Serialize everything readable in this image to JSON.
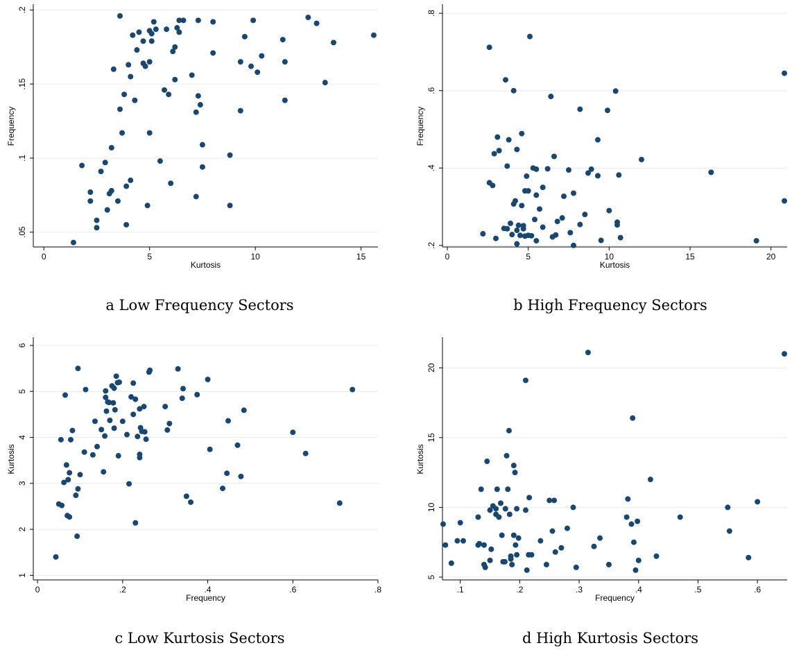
{
  "chart_data": [
    {
      "type": "scatter",
      "caption": "a  Low Frequency Sectors",
      "xlabel": "Kurtosis",
      "ylabel": "Frequency",
      "xlim": [
        -0.5,
        15.8
      ],
      "ylim": [
        0.04,
        0.203
      ],
      "xticks": [
        {
          "v": 0,
          "label": "0"
        },
        {
          "v": 5,
          "label": "5"
        },
        {
          "v": 10,
          "label": "10"
        },
        {
          "v": 15,
          "label": "15"
        }
      ],
      "yticks": [
        {
          "v": 0.05,
          "label": ".05"
        },
        {
          "v": 0.1,
          "label": ".1"
        },
        {
          "v": 0.15,
          "label": ".15"
        },
        {
          "v": 0.2,
          "label": ".2"
        }
      ],
      "grid": true,
      "points": [
        [
          1.4,
          0.043
        ],
        [
          1.8,
          0.095
        ],
        [
          2.2,
          0.077
        ],
        [
          2.2,
          0.071
        ],
        [
          2.5,
          0.058
        ],
        [
          2.5,
          0.053
        ],
        [
          2.7,
          0.091
        ],
        [
          2.9,
          0.097
        ],
        [
          3.0,
          0.065
        ],
        [
          3.1,
          0.076
        ],
        [
          3.2,
          0.107
        ],
        [
          3.2,
          0.078
        ],
        [
          3.3,
          0.16
        ],
        [
          3.5,
          0.071
        ],
        [
          3.6,
          0.133
        ],
        [
          3.6,
          0.196
        ],
        [
          3.7,
          0.117
        ],
        [
          3.8,
          0.143
        ],
        [
          3.9,
          0.081
        ],
        [
          3.9,
          0.055
        ],
        [
          4.0,
          0.163
        ],
        [
          4.1,
          0.085
        ],
        [
          4.1,
          0.155
        ],
        [
          4.2,
          0.183
        ],
        [
          4.3,
          0.139
        ],
        [
          4.4,
          0.173
        ],
        [
          4.5,
          0.185
        ],
        [
          4.7,
          0.179
        ],
        [
          4.7,
          0.164
        ],
        [
          4.8,
          0.162
        ],
        [
          4.9,
          0.068
        ],
        [
          5.0,
          0.186
        ],
        [
          5.0,
          0.117
        ],
        [
          5.0,
          0.165
        ],
        [
          5.1,
          0.179
        ],
        [
          5.1,
          0.184
        ],
        [
          5.2,
          0.192
        ],
        [
          5.3,
          0.187
        ],
        [
          5.5,
          0.098
        ],
        [
          5.7,
          0.146
        ],
        [
          5.8,
          0.187
        ],
        [
          5.9,
          0.143
        ],
        [
          6.0,
          0.083
        ],
        [
          6.1,
          0.172
        ],
        [
          6.2,
          0.175
        ],
        [
          6.2,
          0.153
        ],
        [
          6.3,
          0.188
        ],
        [
          6.4,
          0.193
        ],
        [
          6.4,
          0.185
        ],
        [
          6.6,
          0.193
        ],
        [
          7.0,
          0.156
        ],
        [
          7.2,
          0.074
        ],
        [
          7.2,
          0.131
        ],
        [
          7.3,
          0.142
        ],
        [
          7.3,
          0.193
        ],
        [
          7.4,
          0.136
        ],
        [
          7.5,
          0.094
        ],
        [
          7.5,
          0.109
        ],
        [
          8.0,
          0.171
        ],
        [
          8.0,
          0.192
        ],
        [
          8.8,
          0.068
        ],
        [
          8.8,
          0.102
        ],
        [
          9.3,
          0.165
        ],
        [
          9.3,
          0.132
        ],
        [
          9.5,
          0.182
        ],
        [
          9.8,
          0.162
        ],
        [
          9.9,
          0.193
        ],
        [
          10.1,
          0.158
        ],
        [
          10.3,
          0.169
        ],
        [
          11.3,
          0.18
        ],
        [
          11.4,
          0.165
        ],
        [
          11.4,
          0.139
        ],
        [
          12.5,
          0.195
        ],
        [
          12.9,
          0.191
        ],
        [
          13.3,
          0.151
        ],
        [
          13.7,
          0.178
        ],
        [
          15.6,
          0.183
        ]
      ]
    },
    {
      "type": "scatter",
      "caption": "b  High Frequency Sectors",
      "xlabel": "Kurtosis",
      "ylabel": "Frequency",
      "xlim": [
        -0.3,
        21.0
      ],
      "ylim": [
        0.196,
        0.82
      ],
      "xticks": [
        {
          "v": 0,
          "label": "0"
        },
        {
          "v": 5,
          "label": "5"
        },
        {
          "v": 10,
          "label": "10"
        },
        {
          "v": 15,
          "label": "15"
        },
        {
          "v": 20,
          "label": "20"
        }
      ],
      "yticks": [
        {
          "v": 0.2,
          "label": ".2"
        },
        {
          "v": 0.4,
          "label": ".4"
        },
        {
          "v": 0.6,
          "label": ".6"
        },
        {
          "v": 0.8,
          "label": ".8"
        }
      ],
      "grid": true,
      "points": [
        [
          2.2,
          0.23
        ],
        [
          2.6,
          0.712
        ],
        [
          2.6,
          0.362
        ],
        [
          2.8,
          0.355
        ],
        [
          2.9,
          0.437
        ],
        [
          3.0,
          0.218
        ],
        [
          3.1,
          0.48
        ],
        [
          3.2,
          0.445
        ],
        [
          3.5,
          0.244
        ],
        [
          3.6,
          0.628
        ],
        [
          3.7,
          0.243
        ],
        [
          3.7,
          0.405
        ],
        [
          3.8,
          0.473
        ],
        [
          3.9,
          0.257
        ],
        [
          4.0,
          0.228
        ],
        [
          4.1,
          0.6
        ],
        [
          4.1,
          0.307
        ],
        [
          4.2,
          0.315
        ],
        [
          4.3,
          0.448
        ],
        [
          4.3,
          0.239
        ],
        [
          4.3,
          0.204
        ],
        [
          4.4,
          0.252
        ],
        [
          4.5,
          0.226
        ],
        [
          4.6,
          0.489
        ],
        [
          4.6,
          0.303
        ],
        [
          4.7,
          0.243
        ],
        [
          4.7,
          0.251
        ],
        [
          4.8,
          0.341
        ],
        [
          4.8,
          0.224
        ],
        [
          4.9,
          0.379
        ],
        [
          5.0,
          0.341
        ],
        [
          5.0,
          0.226
        ],
        [
          5.1,
          0.74
        ],
        [
          5.2,
          0.225
        ],
        [
          5.3,
          0.4
        ],
        [
          5.4,
          0.267
        ],
        [
          5.5,
          0.33
        ],
        [
          5.5,
          0.397
        ],
        [
          5.5,
          0.212
        ],
        [
          5.7,
          0.294
        ],
        [
          5.9,
          0.247
        ],
        [
          5.9,
          0.35
        ],
        [
          6.2,
          0.398
        ],
        [
          6.4,
          0.585
        ],
        [
          6.5,
          0.222
        ],
        [
          6.6,
          0.43
        ],
        [
          6.7,
          0.227
        ],
        [
          6.8,
          0.262
        ],
        [
          7.1,
          0.271
        ],
        [
          7.2,
          0.327
        ],
        [
          7.5,
          0.395
        ],
        [
          7.6,
          0.233
        ],
        [
          7.8,
          0.2
        ],
        [
          7.8,
          0.335
        ],
        [
          8.2,
          0.552
        ],
        [
          8.2,
          0.254
        ],
        [
          8.5,
          0.28
        ],
        [
          8.7,
          0.387
        ],
        [
          8.9,
          0.397
        ],
        [
          9.3,
          0.38
        ],
        [
          9.3,
          0.473
        ],
        [
          9.5,
          0.213
        ],
        [
          9.9,
          0.549
        ],
        [
          10.0,
          0.29
        ],
        [
          10.4,
          0.599
        ],
        [
          10.5,
          0.26
        ],
        [
          10.5,
          0.253
        ],
        [
          10.6,
          0.382
        ],
        [
          10.7,
          0.22
        ],
        [
          12.0,
          0.422
        ],
        [
          16.3,
          0.389
        ],
        [
          19.1,
          0.212
        ],
        [
          21.0,
          0.645
        ],
        [
          21.0,
          0.315
        ]
      ]
    },
    {
      "type": "scatter",
      "caption": "c  Low Kurtosis Sectors",
      "xlabel": "Frequency",
      "ylabel": "Kurtosis",
      "xlim": [
        -0.01,
        0.8
      ],
      "ylim": [
        0.9,
        6.15
      ],
      "xticks": [
        {
          "v": 0,
          "label": "0"
        },
        {
          "v": 0.2,
          "label": ".2"
        },
        {
          "v": 0.4,
          "label": ".4"
        },
        {
          "v": 0.6,
          "label": ".6"
        },
        {
          "v": 0.8,
          "label": ".8"
        }
      ],
      "yticks": [
        {
          "v": 1,
          "label": "1"
        },
        {
          "v": 2,
          "label": "2"
        },
        {
          "v": 3,
          "label": "3"
        },
        {
          "v": 4,
          "label": "4"
        },
        {
          "v": 5,
          "label": "5"
        },
        {
          "v": 6,
          "label": "6"
        }
      ],
      "grid": true,
      "points": [
        [
          0.043,
          1.4
        ],
        [
          0.05,
          2.55
        ],
        [
          0.055,
          3.95
        ],
        [
          0.057,
          2.52
        ],
        [
          0.062,
          3.02
        ],
        [
          0.065,
          4.92
        ],
        [
          0.068,
          3.4
        ],
        [
          0.07,
          2.3
        ],
        [
          0.072,
          3.08
        ],
        [
          0.075,
          2.27
        ],
        [
          0.075,
          3.23
        ],
        [
          0.078,
          3.95
        ],
        [
          0.082,
          4.15
        ],
        [
          0.09,
          2.74
        ],
        [
          0.093,
          1.85
        ],
        [
          0.095,
          5.5
        ],
        [
          0.095,
          2.88
        ],
        [
          0.1,
          3.19
        ],
        [
          0.11,
          3.68
        ],
        [
          0.113,
          5.04
        ],
        [
          0.13,
          3.62
        ],
        [
          0.135,
          4.35
        ],
        [
          0.14,
          3.8
        ],
        [
          0.15,
          4.17
        ],
        [
          0.155,
          3.25
        ],
        [
          0.158,
          4.03
        ],
        [
          0.16,
          4.87
        ],
        [
          0.16,
          5.01
        ],
        [
          0.162,
          4.57
        ],
        [
          0.165,
          4.77
        ],
        [
          0.168,
          4.76
        ],
        [
          0.17,
          4.37
        ],
        [
          0.175,
          5.12
        ],
        [
          0.178,
          4.75
        ],
        [
          0.18,
          4.2
        ],
        [
          0.18,
          5.07
        ],
        [
          0.182,
          4.6
        ],
        [
          0.185,
          5.33
        ],
        [
          0.188,
          5.19
        ],
        [
          0.19,
          3.6
        ],
        [
          0.192,
          5.2
        ],
        [
          0.2,
          4.35
        ],
        [
          0.21,
          4.06
        ],
        [
          0.215,
          2.99
        ],
        [
          0.22,
          4.88
        ],
        [
          0.225,
          5.18
        ],
        [
          0.225,
          4.5
        ],
        [
          0.23,
          2.14
        ],
        [
          0.23,
          4.83
        ],
        [
          0.235,
          4.02
        ],
        [
          0.24,
          4.62
        ],
        [
          0.24,
          3.56
        ],
        [
          0.24,
          3.63
        ],
        [
          0.242,
          4.21
        ],
        [
          0.245,
          4.13
        ],
        [
          0.25,
          4.67
        ],
        [
          0.252,
          4.12
        ],
        [
          0.255,
          3.96
        ],
        [
          0.262,
          5.42
        ],
        [
          0.264,
          5.46
        ],
        [
          0.3,
          4.67
        ],
        [
          0.305,
          4.16
        ],
        [
          0.31,
          4.3
        ],
        [
          0.33,
          5.49
        ],
        [
          0.34,
          4.85
        ],
        [
          0.342,
          5.06
        ],
        [
          0.35,
          2.72
        ],
        [
          0.36,
          2.59
        ],
        [
          0.375,
          4.93
        ],
        [
          0.4,
          5.26
        ],
        [
          0.405,
          3.74
        ],
        [
          0.435,
          2.89
        ],
        [
          0.445,
          3.22
        ],
        [
          0.448,
          4.36
        ],
        [
          0.47,
          3.83
        ],
        [
          0.478,
          3.15
        ],
        [
          0.485,
          4.59
        ],
        [
          0.6,
          4.11
        ],
        [
          0.63,
          3.65
        ],
        [
          0.71,
          2.57
        ],
        [
          0.74,
          5.04
        ]
      ]
    },
    {
      "type": "scatter",
      "caption": "d  High Kurtosis Sectors",
      "xlabel": "Frequency",
      "ylabel": "Kurtosis",
      "xlim": [
        0.07,
        0.65
      ],
      "ylim": [
        4.8,
        22.1
      ],
      "xticks": [
        {
          "v": 0.1,
          "label": ".1"
        },
        {
          "v": 0.2,
          "label": ".2"
        },
        {
          "v": 0.3,
          "label": ".3"
        },
        {
          "v": 0.4,
          "label": ".4"
        },
        {
          "v": 0.5,
          "label": ".5"
        },
        {
          "v": 0.6,
          "label": ".6"
        }
      ],
      "yticks": [
        {
          "v": 5,
          "label": "5"
        },
        {
          "v": 10,
          "label": "10"
        },
        {
          "v": 15,
          "label": "15"
        },
        {
          "v": 20,
          "label": "20"
        }
      ],
      "grid": true,
      "points": [
        [
          0.07,
          8.8
        ],
        [
          0.075,
          7.3
        ],
        [
          0.085,
          6.0
        ],
        [
          0.095,
          7.6
        ],
        [
          0.1,
          8.9
        ],
        [
          0.105,
          7.6
        ],
        [
          0.13,
          7.3
        ],
        [
          0.13,
          9.3
        ],
        [
          0.132,
          7.4
        ],
        [
          0.135,
          11.3
        ],
        [
          0.14,
          7.3
        ],
        [
          0.14,
          5.9
        ],
        [
          0.142,
          5.7
        ],
        [
          0.145,
          13.3
        ],
        [
          0.15,
          9.8
        ],
        [
          0.15,
          6.2
        ],
        [
          0.152,
          7.0
        ],
        [
          0.155,
          10.1
        ],
        [
          0.16,
          9.5
        ],
        [
          0.16,
          9.9
        ],
        [
          0.162,
          11.3
        ],
        [
          0.165,
          9.3
        ],
        [
          0.168,
          10.3
        ],
        [
          0.17,
          8.0
        ],
        [
          0.172,
          6.1
        ],
        [
          0.175,
          6.1
        ],
        [
          0.176,
          9.9
        ],
        [
          0.178,
          13.7
        ],
        [
          0.18,
          11.3
        ],
        [
          0.182,
          15.5
        ],
        [
          0.183,
          9.5
        ],
        [
          0.185,
          6.5
        ],
        [
          0.185,
          6.3
        ],
        [
          0.187,
          5.9
        ],
        [
          0.19,
          13.0
        ],
        [
          0.19,
          8.0
        ],
        [
          0.192,
          12.5
        ],
        [
          0.193,
          7.3
        ],
        [
          0.195,
          6.6
        ],
        [
          0.195,
          9.9
        ],
        [
          0.198,
          7.8
        ],
        [
          0.21,
          9.8
        ],
        [
          0.21,
          19.1
        ],
        [
          0.212,
          5.5
        ],
        [
          0.215,
          6.6
        ],
        [
          0.216,
          10.7
        ],
        [
          0.22,
          6.6
        ],
        [
          0.235,
          7.6
        ],
        [
          0.245,
          5.9
        ],
        [
          0.25,
          10.5
        ],
        [
          0.255,
          8.3
        ],
        [
          0.258,
          10.5
        ],
        [
          0.26,
          6.8
        ],
        [
          0.27,
          7.1
        ],
        [
          0.28,
          8.5
        ],
        [
          0.29,
          10.0
        ],
        [
          0.295,
          5.7
        ],
        [
          0.315,
          21.1
        ],
        [
          0.325,
          7.2
        ],
        [
          0.335,
          7.8
        ],
        [
          0.35,
          5.9
        ],
        [
          0.38,
          9.3
        ],
        [
          0.382,
          10.6
        ],
        [
          0.388,
          8.8
        ],
        [
          0.39,
          16.4
        ],
        [
          0.392,
          7.5
        ],
        [
          0.395,
          5.5
        ],
        [
          0.398,
          9.0
        ],
        [
          0.4,
          6.2
        ],
        [
          0.42,
          12.0
        ],
        [
          0.43,
          6.5
        ],
        [
          0.47,
          9.3
        ],
        [
          0.55,
          10.0
        ],
        [
          0.553,
          8.3
        ],
        [
          0.585,
          6.4
        ],
        [
          0.6,
          10.4
        ],
        [
          0.65,
          21.0
        ]
      ]
    }
  ]
}
